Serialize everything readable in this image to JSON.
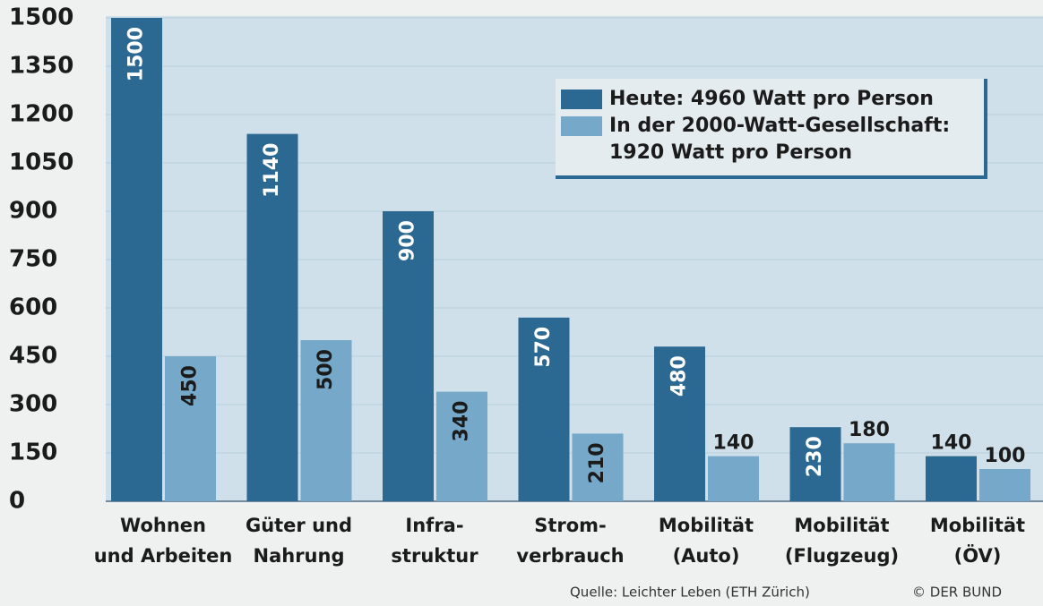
{
  "chart_data": {
    "type": "bar",
    "categories": [
      [
        "Wohnen",
        "und Arbeiten"
      ],
      [
        "Güter und",
        "Nahrung"
      ],
      [
        "Infra-",
        "struktur"
      ],
      [
        "Strom-",
        "verbrauch"
      ],
      [
        "Mobilität",
        "(Auto)"
      ],
      [
        "Mobilität",
        "(Flugzeug)"
      ],
      [
        "Mobilität",
        "(ÖV)"
      ]
    ],
    "series": [
      {
        "name": "Heute: 4960 Watt pro Person",
        "color": "#2b6892",
        "values": [
          1500,
          1140,
          900,
          570,
          480,
          230,
          140
        ]
      },
      {
        "name": "In der 2000-Watt-Gesellschaft: 1920 Watt pro Person",
        "color": "#76a8c9",
        "values": [
          450,
          500,
          340,
          210,
          140,
          180,
          100
        ]
      }
    ],
    "ylim": [
      0,
      1500
    ],
    "yticks": [
      0,
      150,
      300,
      450,
      600,
      750,
      900,
      1050,
      1200,
      1350,
      1500
    ],
    "grid": true,
    "legend": "upper right",
    "source": "Quelle: Leichter Leben (ETH Zürich)",
    "credit": "© DER BUND"
  }
}
